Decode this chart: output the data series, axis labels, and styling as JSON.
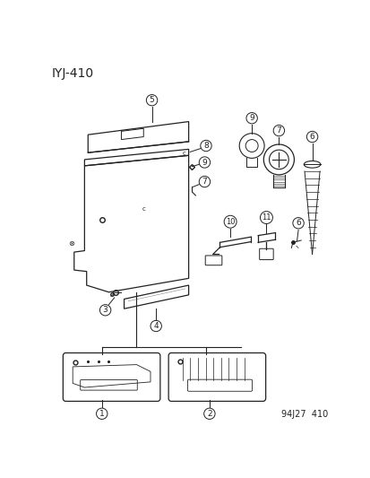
{
  "title": "IYJ-410",
  "footer": "94J27  410",
  "bg_color": "#ffffff",
  "title_fontsize": 10,
  "footer_fontsize": 7,
  "c": "#222222",
  "lw": 0.9
}
